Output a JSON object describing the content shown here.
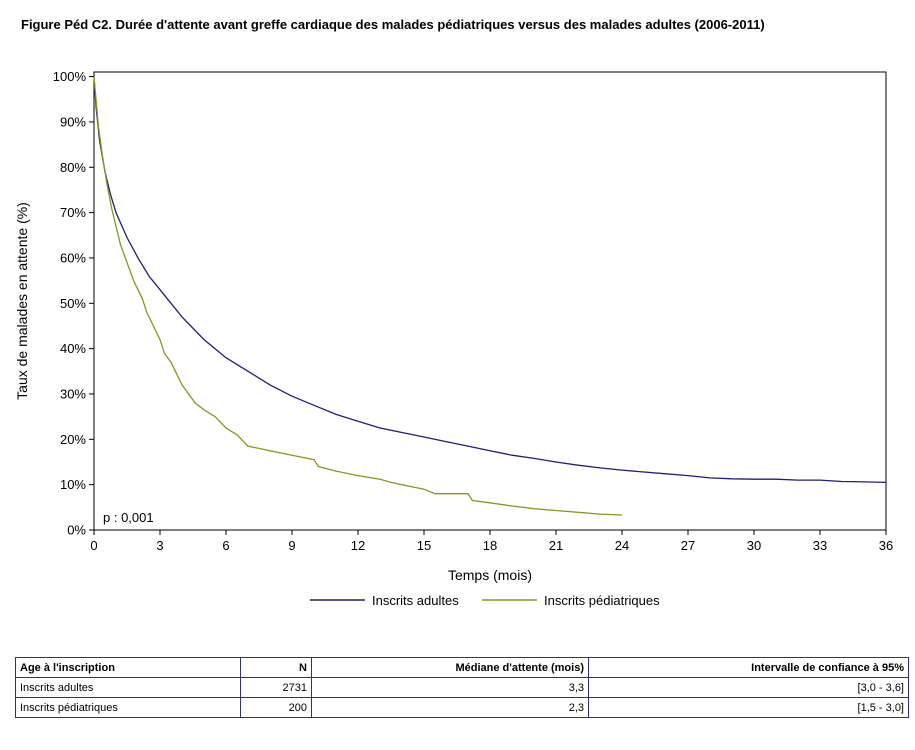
{
  "title": "Figure Péd C2. Durée d'attente avant greffe cardiaque des malades pédiatriques versus des malades adultes (2006-2011)",
  "annotation": "p : 0,001",
  "chart_data": {
    "type": "line",
    "xlabel": "Temps (mois)",
    "ylabel": "Taux de malades en attente (%)",
    "xlim": [
      0,
      36
    ],
    "ylim": [
      0,
      100
    ],
    "xticks": [
      "0",
      "3",
      "6",
      "9",
      "12",
      "15",
      "18",
      "21",
      "24",
      "27",
      "30",
      "33",
      "36"
    ],
    "yticks": [
      "0%",
      "10%",
      "20%",
      "30%",
      "40%",
      "50%",
      "60%",
      "70%",
      "80%",
      "90%",
      "100%"
    ],
    "grid": false,
    "legend": "bottom",
    "series": [
      {
        "name": "Inscrits adultes",
        "color": "#1f1f7a",
        "x": [
          0,
          0.1,
          0.25,
          0.5,
          0.75,
          1,
          1.5,
          2,
          2.5,
          3,
          3.5,
          4,
          5,
          6,
          7,
          8,
          9,
          10,
          11,
          12,
          13,
          14,
          15,
          16,
          17,
          18,
          19,
          20,
          21,
          22,
          23,
          24,
          25,
          26,
          27,
          28,
          29,
          30,
          31,
          32,
          33,
          34,
          35,
          36
        ],
        "y": [
          100,
          93,
          86,
          79,
          74,
          70,
          64.5,
          60,
          56,
          53,
          50,
          47,
          42,
          38,
          35,
          32,
          29.5,
          27.5,
          25.5,
          24,
          22.5,
          21.5,
          20.5,
          19.5,
          18.5,
          17.5,
          16.5,
          15.8,
          15,
          14.3,
          13.7,
          13.2,
          12.8,
          12.4,
          12,
          11.5,
          11.3,
          11.2,
          11.2,
          11,
          11,
          10.7,
          10.6,
          10.5
        ]
      },
      {
        "name": "Inscrits pédiatriques",
        "color": "#7f9a1f",
        "x": [
          0,
          0.2,
          0.4,
          0.6,
          0.8,
          1,
          1.2,
          1.5,
          1.8,
          2,
          2.2,
          2.4,
          2.6,
          2.8,
          3,
          3.2,
          3.5,
          3.8,
          4,
          4.3,
          4.6,
          5,
          5.5,
          6,
          6.5,
          7,
          7.5,
          8,
          9,
          10,
          10.2,
          11,
          12,
          13,
          13.5,
          14,
          15,
          15.5,
          16,
          17,
          17.2,
          18,
          19,
          20,
          21,
          22,
          23,
          24
        ],
        "y": [
          100,
          89,
          82,
          76,
          71,
          67,
          63,
          59,
          55,
          53,
          51,
          48,
          46,
          44,
          42,
          39,
          37,
          34,
          32,
          30,
          28,
          26.5,
          25,
          22.5,
          21,
          18.5,
          18,
          17.5,
          16.5,
          15.5,
          14,
          13,
          12,
          11.2,
          10.5,
          10,
          9,
          8,
          8,
          8,
          6.5,
          6,
          5.3,
          4.7,
          4.3,
          3.9,
          3.5,
          3.3
        ]
      }
    ]
  },
  "table": {
    "headers": [
      "Age à l'inscription",
      "N",
      "Médiane d'attente (mois)",
      "Intervalle de confiance à 95%"
    ],
    "rows": [
      [
        "Inscrits adultes",
        "2731",
        "3,3",
        "[3,0 - 3,6]"
      ],
      [
        "Inscrits pédiatriques",
        "200",
        "2,3",
        "[1,5 - 3,0]"
      ]
    ]
  }
}
